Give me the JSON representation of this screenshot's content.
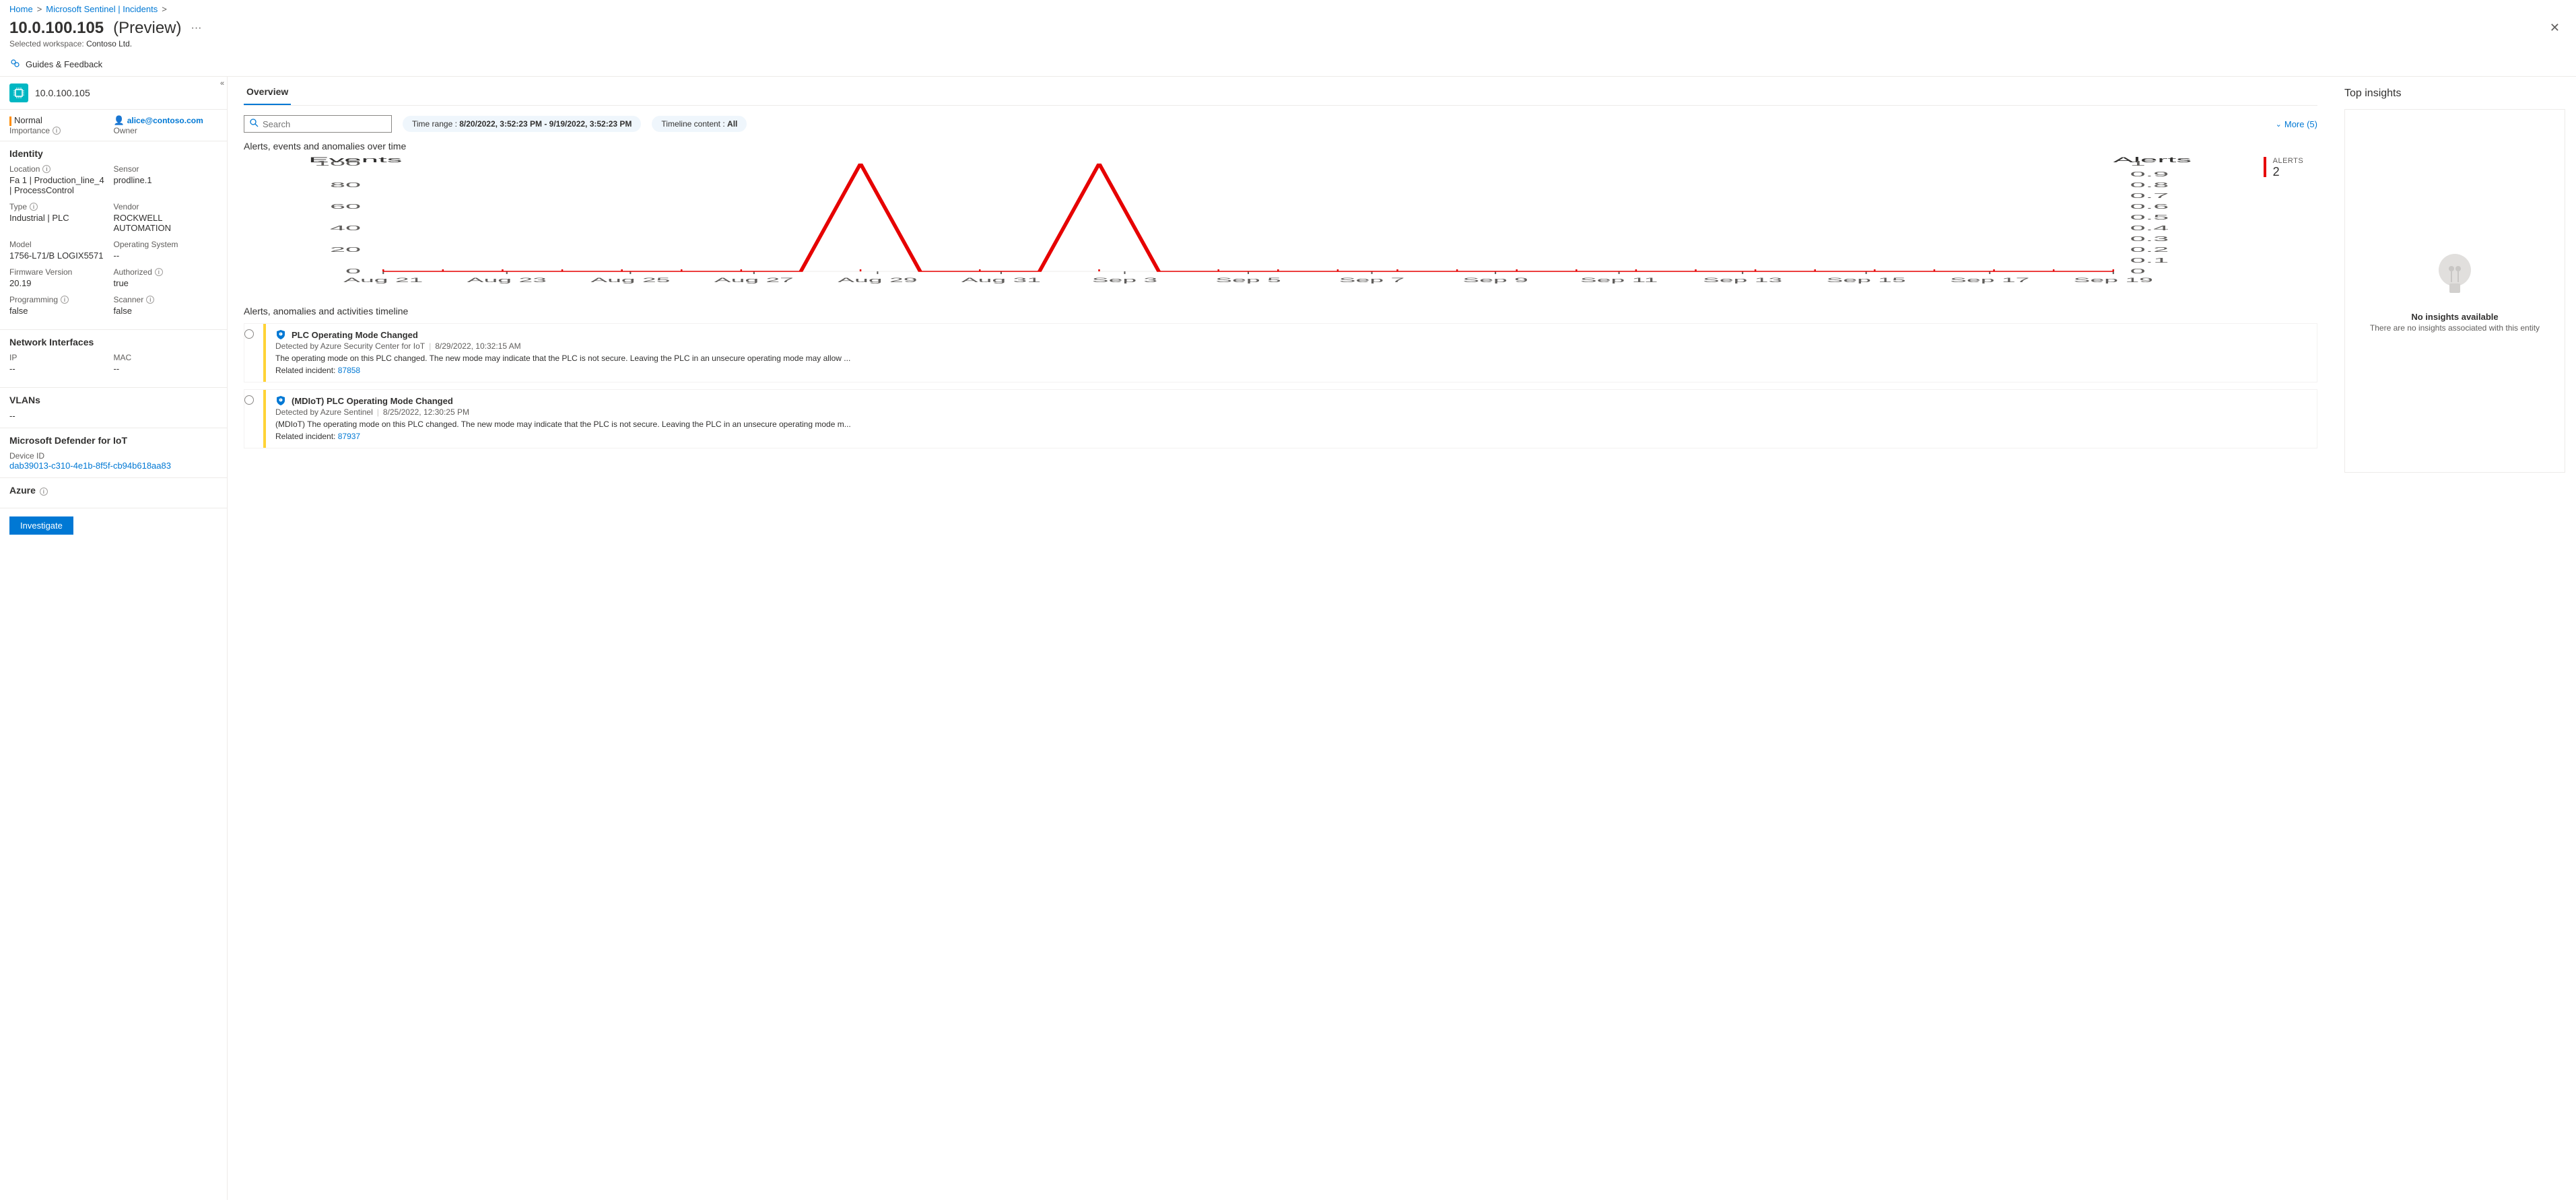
{
  "breadcrumb": [
    "Home",
    "Microsoft Sentinel | Incidents"
  ],
  "page_title": "10.0.100.105",
  "title_suffix": "(Preview)",
  "workspace_label": "Selected workspace:",
  "workspace_name": "Contoso Ltd.",
  "guides_label": "Guides & Feedback",
  "device": {
    "ip": "10.0.100.105",
    "importance_label": "Importance",
    "importance_value": "Normal",
    "importance_color": "#ff8c00",
    "owner_label": "Owner",
    "owner_value": "alice@contoso.com"
  },
  "identity": {
    "heading": "Identity",
    "fields": {
      "location": {
        "label": "Location",
        "value": "Fa 1 | Production_line_4 | ProcessControl"
      },
      "sensor": {
        "label": "Sensor",
        "value": "prodline.1"
      },
      "type": {
        "label": "Type",
        "value": "Industrial | PLC"
      },
      "vendor": {
        "label": "Vendor",
        "value": "ROCKWELL AUTOMATION"
      },
      "model": {
        "label": "Model",
        "value": "1756-L71/B LOGIX5571"
      },
      "os": {
        "label": "Operating System",
        "value": "--"
      },
      "firmware": {
        "label": "Firmware Version",
        "value": "20.19"
      },
      "authorized": {
        "label": "Authorized",
        "value": "true"
      },
      "programming": {
        "label": "Programming",
        "value": "false"
      },
      "scanner": {
        "label": "Scanner",
        "value": "false"
      }
    }
  },
  "network": {
    "heading": "Network Interfaces",
    "ip_label": "IP",
    "ip_value": "--",
    "mac_label": "MAC",
    "mac_value": "--"
  },
  "vlans": {
    "heading": "VLANs",
    "value": "--"
  },
  "defender": {
    "heading": "Microsoft Defender for IoT",
    "device_id_label": "Device ID",
    "device_id_value": "dab39013-c310-4e1b-8f5f-cb94b618aa83"
  },
  "azure": {
    "heading": "Azure"
  },
  "investigate_label": "Investigate",
  "overview": {
    "tab": "Overview",
    "search_placeholder": "Search",
    "time_range_label": "Time range : ",
    "time_range_value": "8/20/2022, 3:52:23 PM - 9/19/2022, 3:52:23 PM",
    "timeline_content_label": "Timeline content : ",
    "timeline_content_value": "All",
    "more_label": "More (5)",
    "chart_title": "Alerts, events and anomalies over time",
    "timeline_title": "Alerts, anomalies and activities timeline"
  },
  "chart": {
    "events_label": "Events",
    "alerts_label": "Alerts",
    "line_color": "#e60000",
    "grid_color": "#edebe9",
    "tick_color": "#605e5c",
    "left_ticks": [
      0,
      20,
      40,
      60,
      80,
      100
    ],
    "right_ticks": [
      0,
      0.1,
      0.2,
      0.3,
      0.4,
      0.5,
      0.6,
      0.7,
      0.8,
      0.9,
      1
    ],
    "x_labels": [
      "Aug 21",
      "Aug 23",
      "Aug 25",
      "Aug 27",
      "Aug 29",
      "Aug 31",
      "Sep 3",
      "Sep 5",
      "Sep 7",
      "Sep 9",
      "Sep 11",
      "Sep 13",
      "Sep 15",
      "Sep 17",
      "Sep 19"
    ],
    "series_events": [
      0,
      0,
      0,
      0,
      0,
      0,
      0,
      0,
      100,
      0,
      0,
      0,
      100,
      0,
      0,
      0,
      0,
      0,
      0,
      0,
      0,
      0,
      0,
      0,
      0,
      0,
      0,
      0,
      0,
      0
    ],
    "alerts_badge_label": "ALERTS",
    "alerts_badge_value": "2"
  },
  "timeline": [
    {
      "bar_color": "#ffd335",
      "title": "PLC Operating Mode Changed",
      "detected_by": "Detected by Azure Security Center for IoT",
      "timestamp": "8/29/2022, 10:32:15 AM",
      "description": "The operating mode on this PLC changed. The new mode may indicate that the PLC is not secure. Leaving the PLC in an unsecure operating mode may allow ...",
      "related_label": "Related incident: ",
      "related_id": "87858"
    },
    {
      "bar_color": "#ffd335",
      "title": "(MDIoT) PLC Operating Mode Changed",
      "detected_by": "Detected by Azure Sentinel",
      "timestamp": "8/25/2022, 12:30:25 PM",
      "description": "(MDIoT) The operating mode on this PLC changed. The new mode may indicate that the PLC is not secure. Leaving the PLC in an unsecure operating mode m...",
      "related_label": "Related incident: ",
      "related_id": "87937"
    }
  ],
  "insights": {
    "heading": "Top insights",
    "none_title": "No insights available",
    "none_sub": "There are no insights associated with this entity"
  }
}
